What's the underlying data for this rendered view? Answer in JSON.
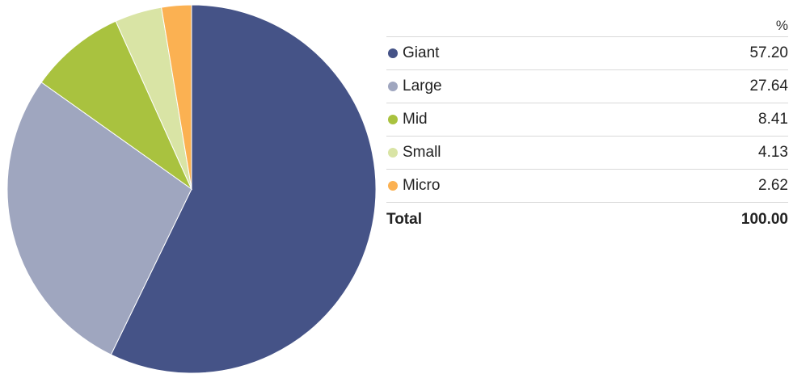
{
  "chart_data": {
    "type": "pie",
    "column_header": "%",
    "slices": [
      {
        "label": "Giant",
        "value": 57.2,
        "display": "57.20",
        "color": "#455387"
      },
      {
        "label": "Large",
        "value": 27.64,
        "display": "27.64",
        "color": "#9fa6bf"
      },
      {
        "label": "Mid",
        "value": 8.41,
        "display": "8.41",
        "color": "#a9c23f"
      },
      {
        "label": "Small",
        "value": 4.13,
        "display": "4.13",
        "color": "#d9e4a5"
      },
      {
        "label": "Micro",
        "value": 2.62,
        "display": "2.62",
        "color": "#fbb152"
      }
    ],
    "total": {
      "label": "Total",
      "display": "100.00"
    }
  }
}
